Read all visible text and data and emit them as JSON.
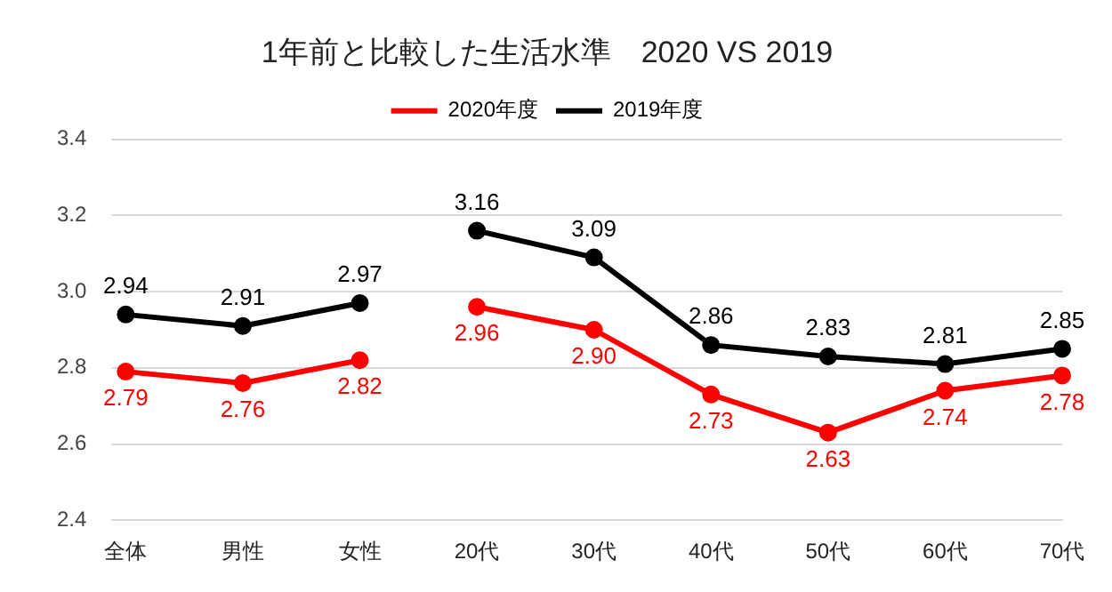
{
  "chart_data": {
    "type": "line",
    "title": "1年前と比較した生活水準　2020 VS 2019",
    "categories": [
      "全体",
      "男性",
      "女性",
      "20代",
      "30代",
      "40代",
      "50代",
      "60代",
      "70代"
    ],
    "series": [
      {
        "name": "2020年度",
        "color": "#ff0000",
        "values": [
          2.79,
          2.76,
          2.82,
          null,
          null,
          null,
          null,
          null,
          null
        ],
        "value_labels": [
          "2.79",
          "2.76",
          "2.82",
          null,
          null,
          null,
          null,
          null,
          null
        ]
      },
      {
        "name": "2019年度",
        "color": "#000000",
        "values": [
          2.94,
          2.91,
          2.97,
          null,
          null,
          null,
          null,
          null,
          null
        ],
        "value_labels": [
          "2.94",
          "2.91",
          "2.97",
          null,
          null,
          null,
          null,
          null,
          null
        ]
      },
      {
        "color": "#ff0000",
        "values": [
          null,
          null,
          null,
          2.96,
          2.9,
          2.73,
          2.63,
          2.74,
          2.78
        ],
        "value_labels": [
          null,
          null,
          null,
          "2.96",
          "2.90",
          "2.73",
          "2.63",
          "2.74",
          "2.78"
        ]
      },
      {
        "color": "#000000",
        "values": [
          null,
          null,
          null,
          3.16,
          3.09,
          2.86,
          2.83,
          2.81,
          2.85
        ],
        "value_labels": [
          null,
          null,
          null,
          "3.16",
          "3.09",
          "2.86",
          "2.83",
          "2.81",
          "2.85"
        ]
      }
    ],
    "ylim": [
      2.4,
      3.4
    ],
    "yticks": [
      2.4,
      2.6,
      2.8,
      {
        "value": 3,
        "label": "3.0"
      },
      3.2,
      3.4
    ],
    "grid": "y",
    "legend": "top",
    "marker": "circle",
    "line_style": "solid"
  }
}
